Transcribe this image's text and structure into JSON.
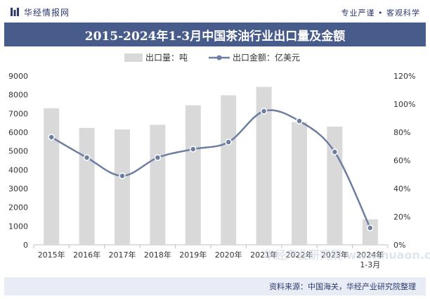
{
  "brand": {
    "name": "华经情报网",
    "slogan": "专业严谨 • 客观科学"
  },
  "footer": {
    "source": "资料来源：中国海关，华经产业研究院整理"
  },
  "watermark": "华经产业研究院 www.huaon.com",
  "colors": {
    "bar": "#d9d9d9",
    "line": "#6c7ea2",
    "title_bg": "#485c8c",
    "footer_bg": "#e8ecf5",
    "brand": "#2c3a6e"
  },
  "chart_data": {
    "type": "bar",
    "title": "2015-2024年1-3月中国茶油行业出口量及金额",
    "categories": [
      "2015年",
      "2016年",
      "2017年",
      "2018年",
      "2019年",
      "2020年",
      "2021年",
      "2022年",
      "2023年",
      "2024年\n1-3月"
    ],
    "series": [
      {
        "name": "出口量：吨",
        "type": "bar",
        "axis": "left",
        "values": [
          7280,
          6230,
          6150,
          6400,
          7440,
          7970,
          8420,
          6540,
          6300,
          1360
        ]
      },
      {
        "name": "出口金额：亿美元",
        "type": "line",
        "axis": "right",
        "values": [
          76.5,
          62,
          49,
          62,
          68,
          73,
          95,
          88,
          66,
          12
        ]
      }
    ],
    "y_left": {
      "min": 0,
      "max": 9000,
      "step": 1000,
      "ticks": [
        "0",
        "1000",
        "2000",
        "3000",
        "4000",
        "5000",
        "6000",
        "7000",
        "8000",
        "9000"
      ]
    },
    "y_right": {
      "min": 0,
      "max": 120,
      "step": 20,
      "ticks": [
        "0%",
        "20%",
        "40%",
        "60%",
        "80%",
        "100%",
        "120%"
      ]
    },
    "legend": "top-center",
    "grid": false
  }
}
